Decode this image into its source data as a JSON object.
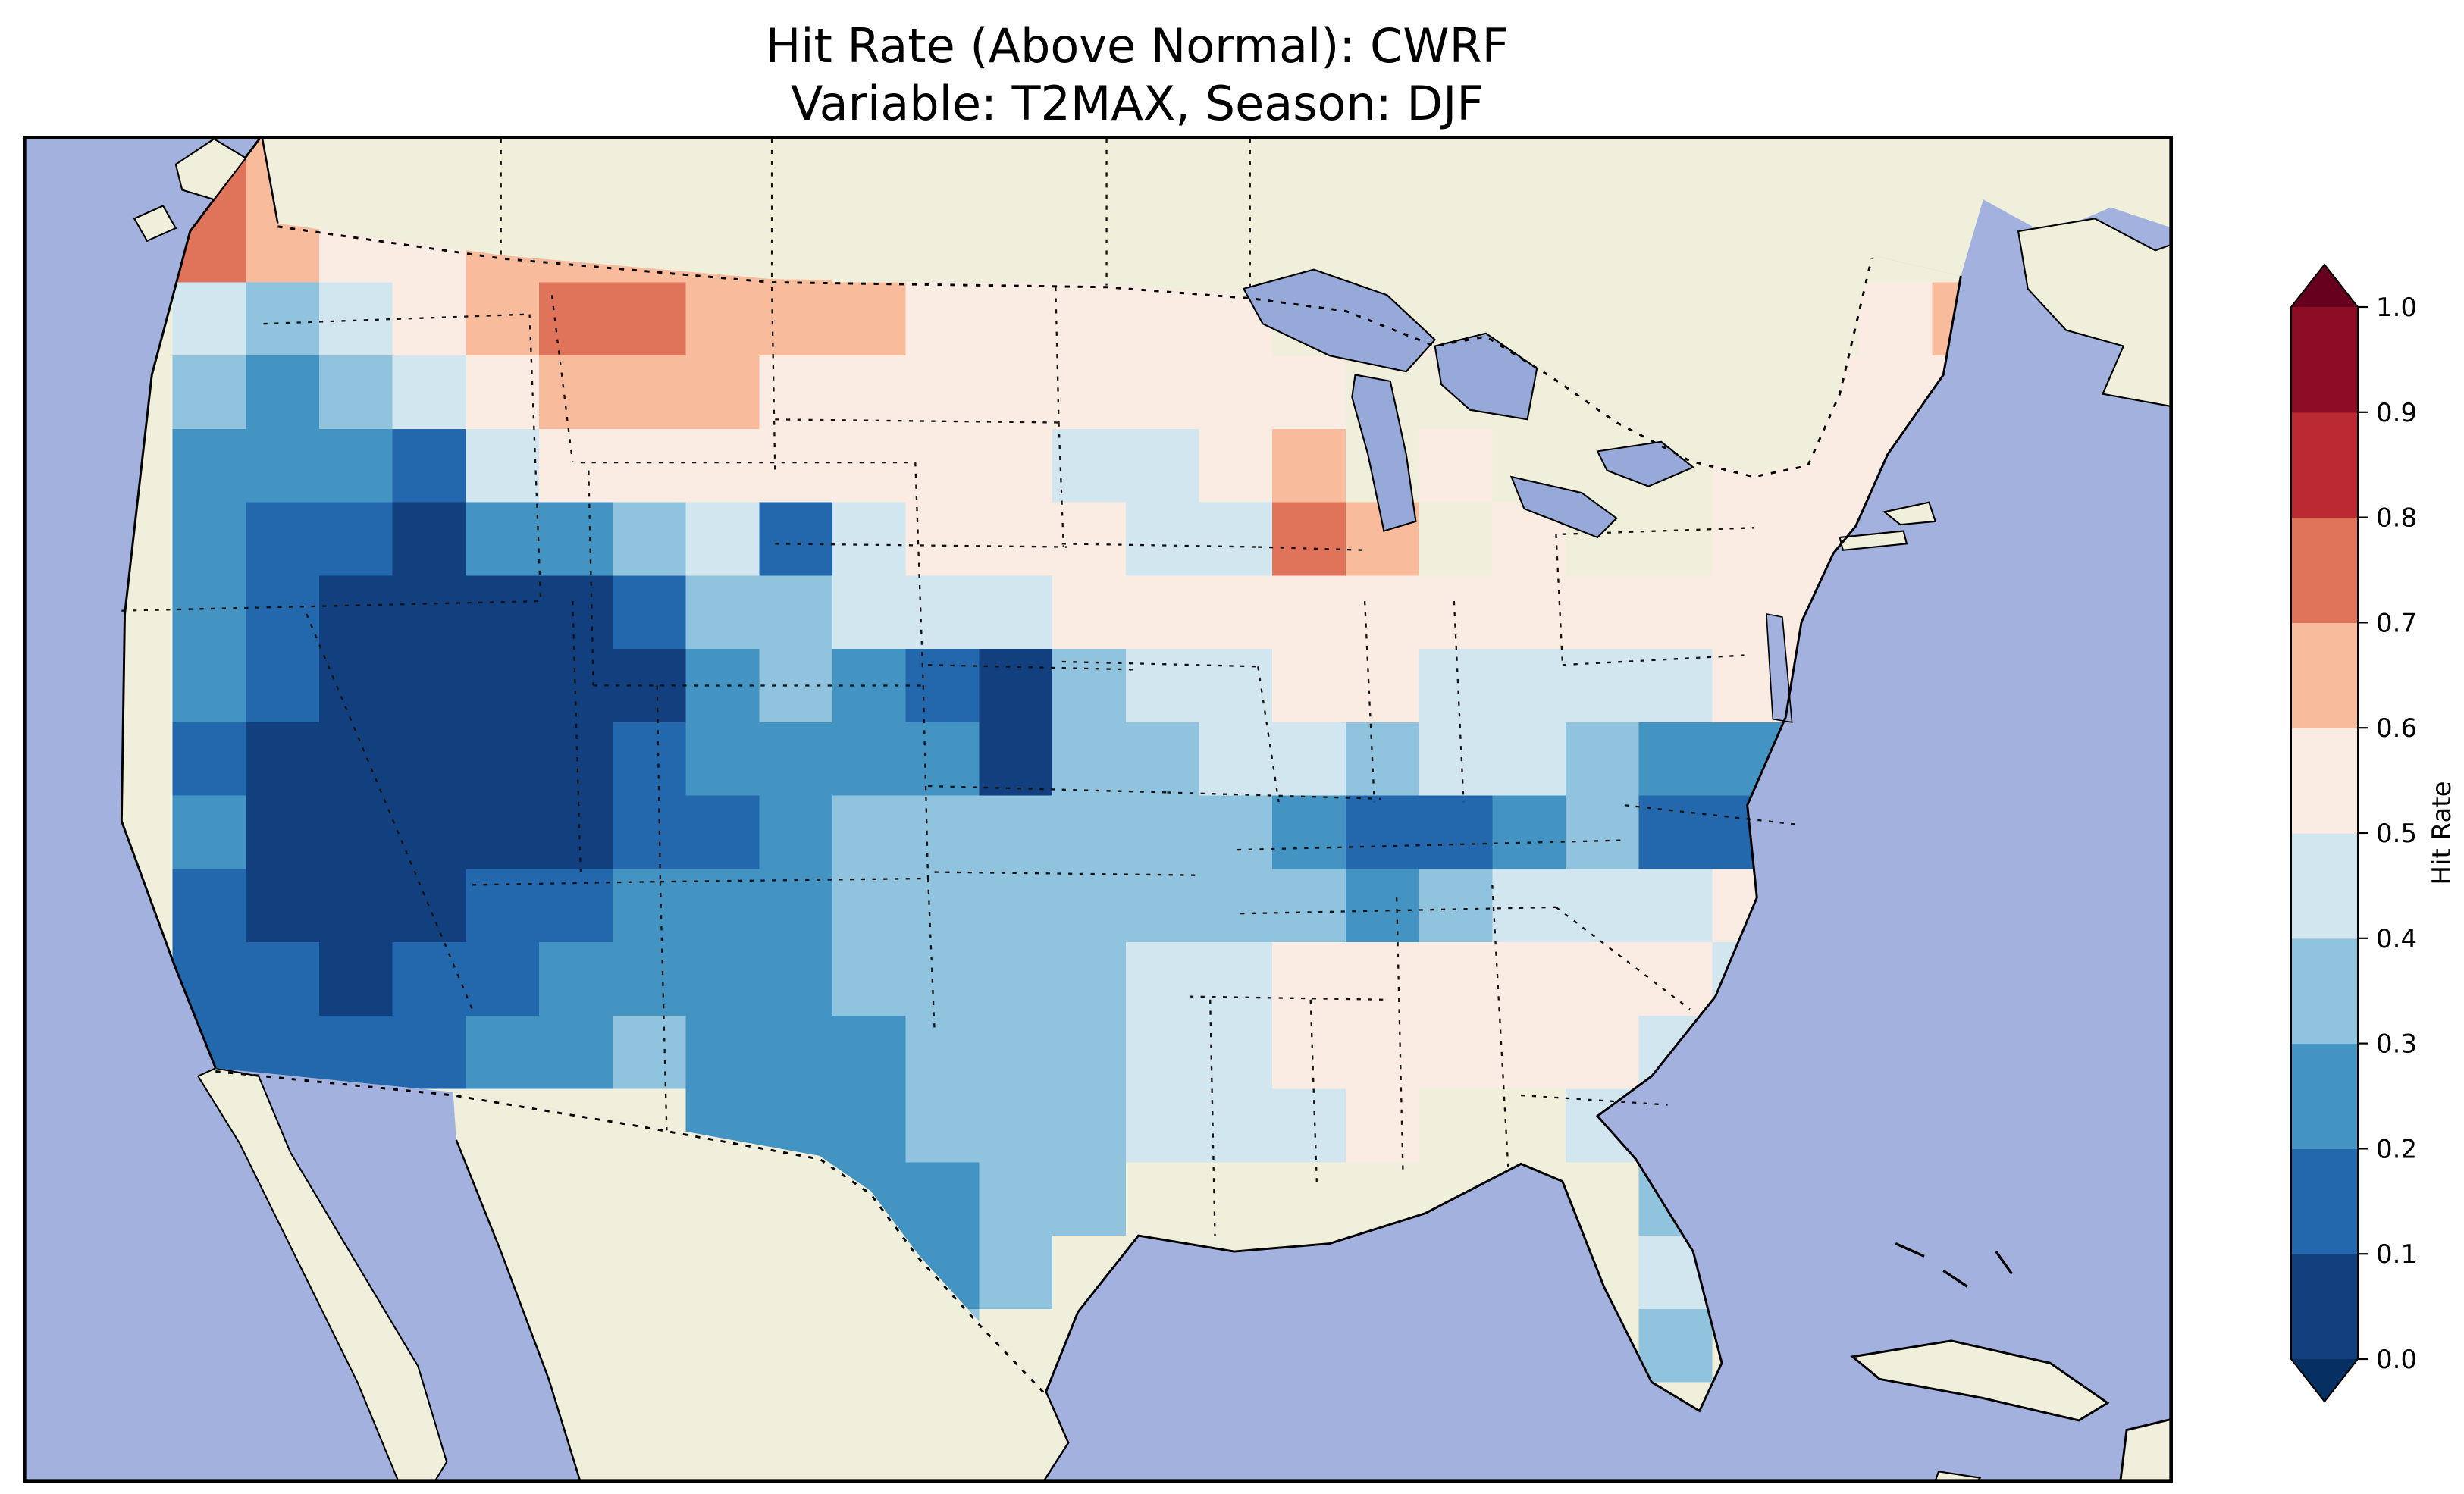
{
  "title": {
    "line1": "Hit Rate (Above Normal): CWRF",
    "line2": "Variable: T2MAX, Season: DJF"
  },
  "colorbar": {
    "label": "Hit Rate",
    "ticks": [
      "1.0",
      "0.9",
      "0.8",
      "0.7",
      "0.6",
      "0.5",
      "0.4",
      "0.3",
      "0.2",
      "0.1",
      "0.0"
    ],
    "band_colors": [
      "#123f7e",
      "#2367ac",
      "#4394c3",
      "#90c3dd",
      "#d2e6f0",
      "#fbece3",
      "#f8bc9c",
      "#e0745a",
      "#bb2a33",
      "#8d0d26"
    ],
    "extend_under_color": "#053061",
    "extend_over_color": "#67001f"
  },
  "map": {
    "ocean_color": "#a2b1dd",
    "land_color": "#efefdb",
    "lake_color": "#96a9d9",
    "coastline_color": "#000000",
    "border_style": "dotted"
  },
  "chart_data": {
    "type": "heatmap",
    "title": "Hit Rate (Above Normal): CWRF",
    "subtitle": "Variable: T2MAX, Season: DJF",
    "metric": "Hit Rate (Above Normal)",
    "model": "CWRF",
    "variable": "T2MAX",
    "season": "DJF",
    "legend": "Hit Rate",
    "value_range": [
      0.0,
      1.0
    ],
    "colormap": "RdBu reversed, discrete 0.1 bins, extended triangles at both ends",
    "domain": "Conterminous United States (gridded field over CONUS; surrounding land masked beige, water light blue)",
    "grid_note": "Approximate hit-rate field read off the figure. Rows run north to south, columns west to east. Each character is the midpoint of a 0.1 bin; '.' = outside the CONUS data domain.",
    "grid_encoding": {
      "0": 0.05,
      "1": 0.15,
      "2": 0.25,
      "3": 0.35,
      "4": 0.45,
      "5": 0.55,
      "6": 0.65,
      "7": 0.75,
      "8": 0.85,
      "9": 0.95,
      ".": null
    },
    "grid_rows": [
      ".76........................",
      ".765566666.................",
      ".434567766655555..55....56.",
      ".3234566655555555......555.",
      ".2221455555554456.5...555..",
      ".21102234145554476.5..555..",
      ".210000133444555555555555..",
      ".210000023210344554444555..",
      ".100000122220334434432245..",
      ".200000112333333211231134..",
      ".10001122233333332344454...",
      ".1101122223333445555554....",
      ".111122322233344555554.....",
      "........2223334445..44.....",
      ".........22233.......34....",
      "..........223........43....",
      "...........3.........3....."
    ],
    "regional_summary": [
      {
        "region": "Pacific Northwest coast (western Washington)",
        "hit_rate": 0.7
      },
      {
        "region": "Northern Rockies / Montana / western North Dakota band",
        "hit_rate": 0.65
      },
      {
        "region": "Great Basin & Southwest (Nevada, Utah, Arizona, SE California, W Colorado, NW New Mexico)",
        "hit_rate": 0.05
      },
      {
        "region": "California coast",
        "hit_rate": 0.2
      },
      {
        "region": "Central and southern Plains (Kansas, Oklahoma, Texas)",
        "hit_rate": 0.3
      },
      {
        "region": "Wisconsin warm pocket",
        "hit_rate": 0.7
      },
      {
        "region": "Upper Midwest (Minnesota, Iowa)",
        "hit_rate": 0.55
      },
      {
        "region": "Ohio Valley / Kentucky / Tennessee dark pocket",
        "hit_rate": 0.15
      },
      {
        "region": "West Virginia / Virginia dark pocket",
        "hit_rate": 0.15
      },
      {
        "region": "Southeast (Alabama, Georgia, Carolinas)",
        "hit_rate": 0.55
      },
      {
        "region": "Florida peninsula",
        "hit_rate": 0.35
      },
      {
        "region": "Northeast (New England, Mid-Atlantic)",
        "hit_rate": 0.55
      },
      {
        "region": "Northern Maine",
        "hit_rate": 0.65
      }
    ]
  }
}
